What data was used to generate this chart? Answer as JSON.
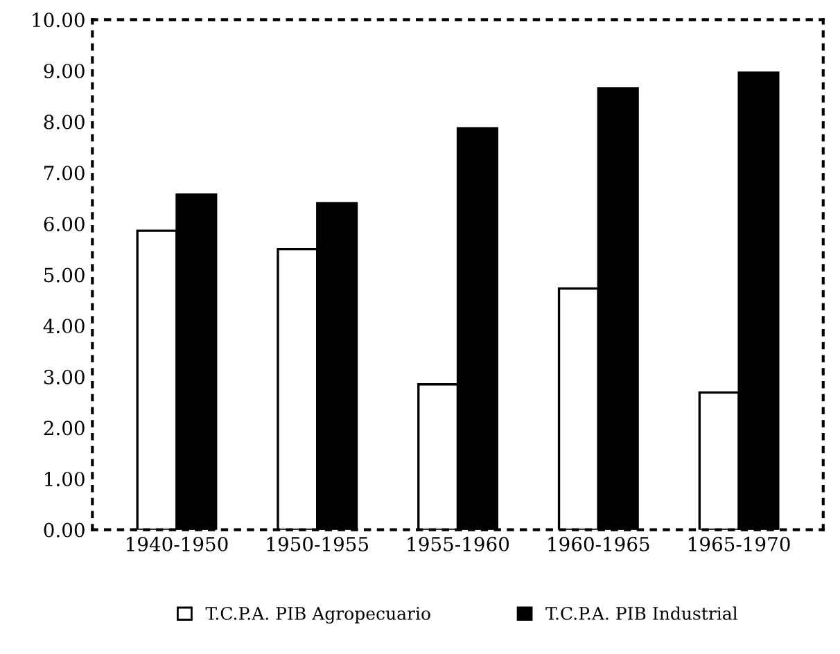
{
  "chart_data": {
    "type": "bar",
    "categories": [
      "1940-1950",
      "1950-1955",
      "1955-1960",
      "1960-1965",
      "1965-1970"
    ],
    "series": [
      {
        "name": "T.C.P.A. PIB Agropecuario",
        "color": "#ffffff",
        "values": [
          5.86,
          5.5,
          2.85,
          4.73,
          2.69
        ]
      },
      {
        "name": "T.C.P.A. PIB Industrial",
        "color": "#000000",
        "values": [
          6.57,
          6.4,
          7.87,
          8.65,
          8.96
        ]
      }
    ],
    "ylim": [
      0,
      10
    ],
    "yticks": [
      {
        "value": 0,
        "label": "0.00"
      },
      {
        "value": 1,
        "label": "1.00"
      },
      {
        "value": 2,
        "label": "2.00"
      },
      {
        "value": 3,
        "label": "3.00"
      },
      {
        "value": 4,
        "label": "4.00"
      },
      {
        "value": 5,
        "label": "5.00"
      },
      {
        "value": 6,
        "label": "6.00"
      },
      {
        "value": 7,
        "label": "7.00"
      },
      {
        "value": 8,
        "label": "8.00"
      },
      {
        "value": 9,
        "label": "9.00"
      },
      {
        "value": 10,
        "label": "10.00"
      }
    ],
    "grid": false,
    "legend": "bottom"
  }
}
